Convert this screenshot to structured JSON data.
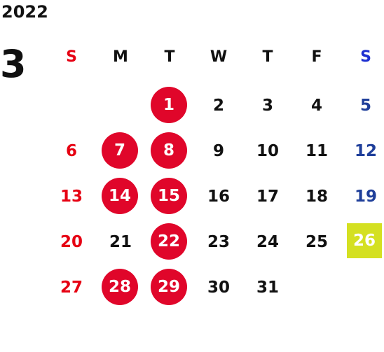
{
  "year": "2022",
  "month": "3",
  "weekdays": [
    "S",
    "M",
    "T",
    "W",
    "T",
    "F",
    "S"
  ],
  "weeks": [
    [
      "",
      "",
      "1",
      "2",
      "3",
      "4",
      "5"
    ],
    [
      "6",
      "7",
      "8",
      "9",
      "10",
      "11",
      "12"
    ],
    [
      "13",
      "14",
      "15",
      "16",
      "17",
      "18",
      "19"
    ],
    [
      "20",
      "21",
      "22",
      "23",
      "24",
      "25",
      "26"
    ],
    [
      "27",
      "28",
      "29",
      "30",
      "31",
      "",
      ""
    ]
  ],
  "marked_days": [
    "1",
    "7",
    "8",
    "14",
    "15",
    "22",
    "28",
    "29"
  ],
  "highlighted_day": "26",
  "colors": {
    "sunday": "#e60012",
    "saturday": "#1f3f9a",
    "marked_circle": "#e0062a",
    "highlight": "#d4e021",
    "text": "#111111"
  }
}
